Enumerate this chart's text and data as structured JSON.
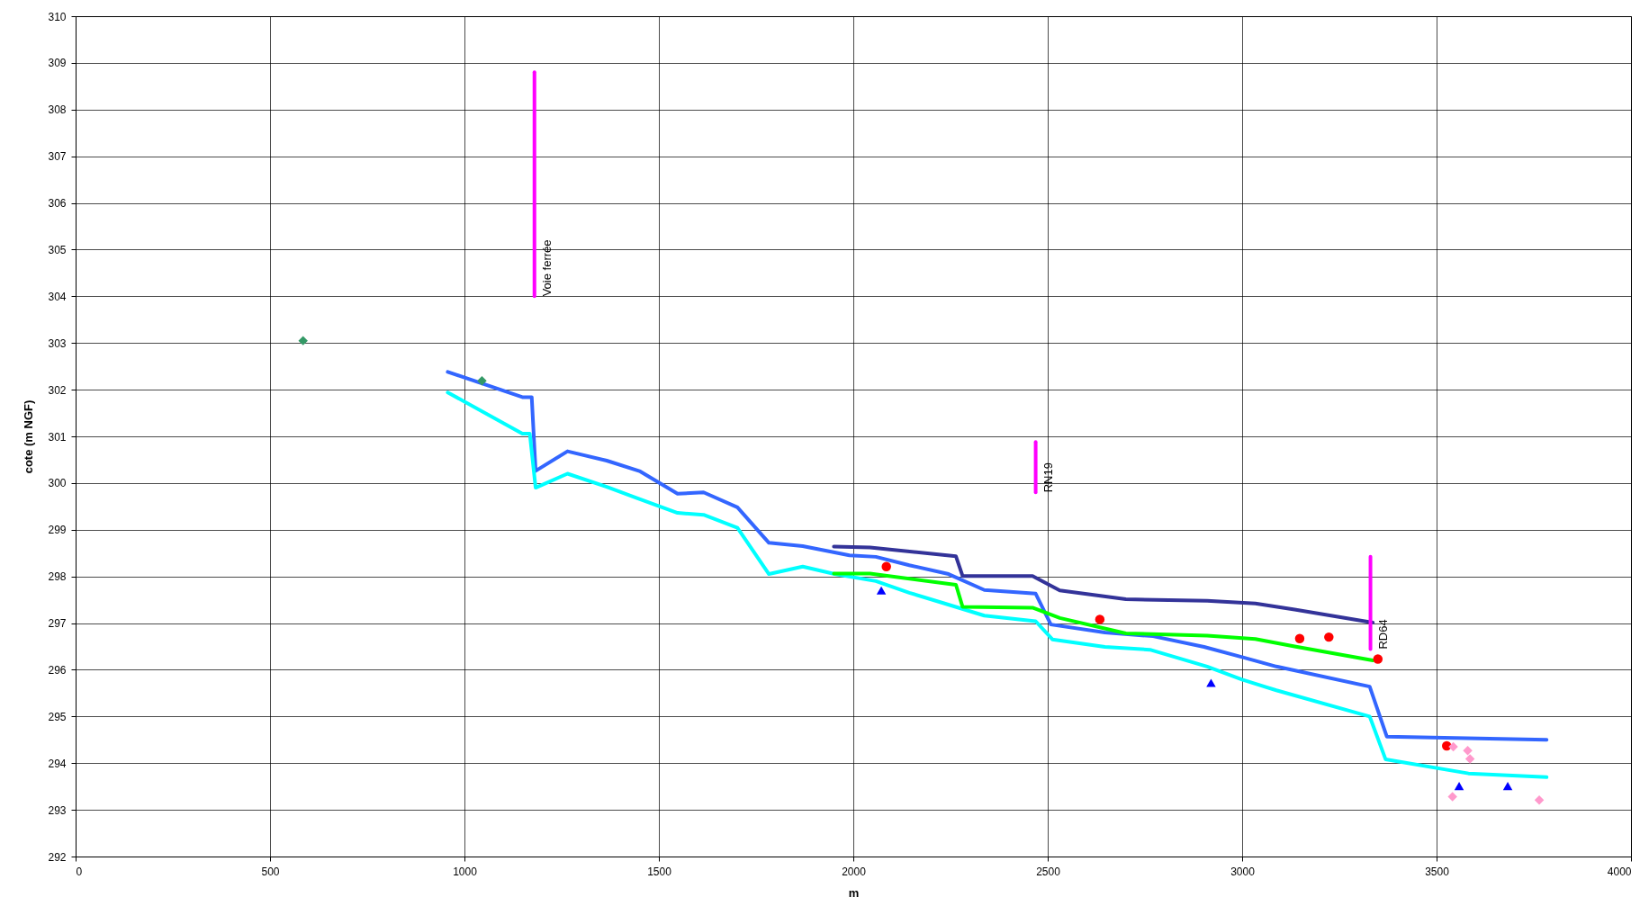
{
  "chart_data": {
    "type": "line",
    "xlabel": "m",
    "ylabel": "cote (m NGF)",
    "xlim": [
      0,
      4000
    ],
    "xticks": [
      0,
      500,
      1000,
      1500,
      2000,
      2500,
      3000,
      3500,
      4000
    ],
    "ylim": [
      292,
      310
    ],
    "yticks": [
      292,
      293,
      294,
      295,
      296,
      297,
      298,
      299,
      300,
      301,
      302,
      303,
      304,
      305,
      306,
      307,
      308,
      309,
      310
    ],
    "grid": true,
    "line_style": "solid",
    "series": [
      {
        "color": "#3366ff",
        "x": [
          957,
          1149,
          1173,
          1183,
          1265,
          1366,
          1452,
          1548,
          1615,
          1702,
          1783,
          1870,
          1990,
          2058,
          2144,
          2245,
          2337,
          2469,
          2508,
          2647,
          2771,
          2902,
          3000,
          3088,
          3328,
          3372,
          3783
        ],
        "values": [
          302.38,
          301.84,
          301.84,
          300.26,
          300.68,
          300.48,
          300.25,
          299.77,
          299.8,
          299.48,
          298.72,
          298.65,
          298.45,
          298.42,
          298.24,
          298.05,
          297.71,
          297.63,
          296.97,
          296.8,
          296.72,
          296.49,
          296.27,
          296.07,
          295.64,
          294.57,
          294.5
        ]
      },
      {
        "color": "#00ffff",
        "x": [
          957,
          1149,
          1168,
          1183,
          1265,
          1366,
          1442,
          1548,
          1615,
          1702,
          1783,
          1870,
          1952,
          2058,
          2144,
          2231,
          2337,
          2469,
          2512,
          2647,
          2763,
          2910,
          3000,
          3088,
          3328,
          3369,
          3582,
          3783
        ],
        "values": [
          301.94,
          301.06,
          301.06,
          299.9,
          300.2,
          299.92,
          299.68,
          299.36,
          299.32,
          299.04,
          298.05,
          298.21,
          298.05,
          297.9,
          297.65,
          297.43,
          297.16,
          297.04,
          296.65,
          296.49,
          296.43,
          296.07,
          295.79,
          295.56,
          295,
          294.08,
          293.78,
          293.7
        ]
      },
      {
        "color": "#333399",
        "x": [
          1950,
          2043,
          2264,
          2281,
          2461,
          2531,
          2701,
          2910,
          3034,
          3135,
          3336
        ],
        "values": [
          298.64,
          298.62,
          298.43,
          298.01,
          298.01,
          297.7,
          297.51,
          297.48,
          297.42,
          297.29,
          297.01
        ]
      },
      {
        "color": "#00ff00",
        "x": [
          1950,
          2043,
          2264,
          2281,
          2461,
          2531,
          2701,
          2910,
          3034,
          3135,
          3336
        ],
        "values": [
          298.06,
          298.06,
          297.82,
          297.35,
          297.33,
          297.11,
          296.78,
          296.73,
          296.66,
          296.5,
          296.2
        ]
      },
      {
        "name": "Voie ferrée",
        "color": "#ff00ff",
        "x": [
          1180,
          1180
        ],
        "values": [
          304,
          308.8
        ]
      },
      {
        "name": "RN19",
        "color": "#ff00ff",
        "x": [
          2469,
          2469
        ],
        "values": [
          299.8,
          300.88
        ]
      },
      {
        "name": "RD64",
        "color": "#ff00ff",
        "x": [
          3330,
          3330
        ],
        "values": [
          296.44,
          298.42
        ]
      },
      {
        "type": "scatter",
        "marker": "circle",
        "color": "#ff0000",
        "x": [
          2085,
          2634,
          3148,
          3223,
          3349,
          3526
        ],
        "values": [
          298.21,
          297.08,
          296.67,
          296.7,
          296.23,
          294.37
        ]
      },
      {
        "type": "scatter",
        "marker": "triangle",
        "color": "#0000ff",
        "x": [
          2072,
          2920,
          3558,
          3683
        ],
        "values": [
          297.7,
          295.72,
          293.51,
          293.51
        ]
      },
      {
        "type": "scatter",
        "marker": "diamond",
        "color": "#ff99cc",
        "x": [
          3543,
          3580,
          3586,
          3541,
          3764
        ],
        "values": [
          294.35,
          294.27,
          294.09,
          293.28,
          293.21
        ]
      },
      {
        "type": "scatter",
        "marker": "diamond",
        "color": "#339966",
        "x": [
          585,
          1045
        ],
        "values": [
          303.05,
          302.19
        ]
      }
    ]
  }
}
